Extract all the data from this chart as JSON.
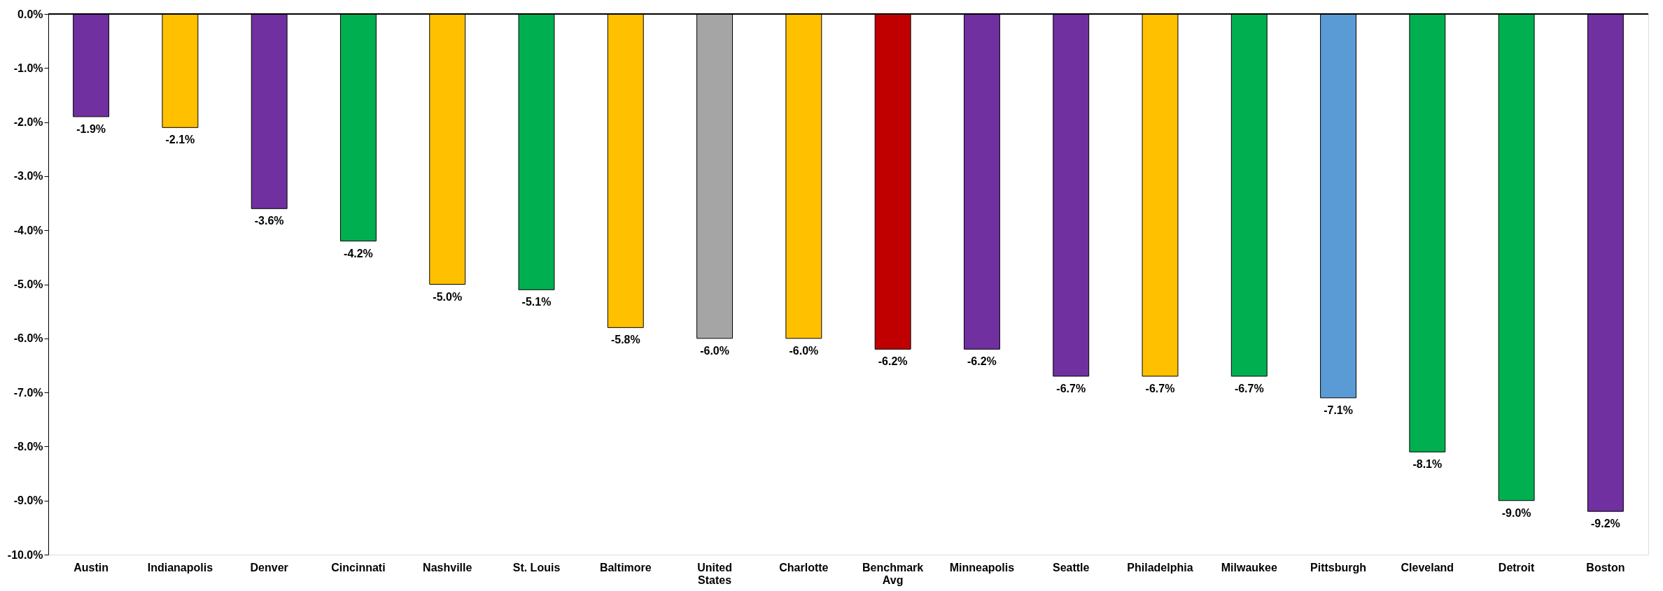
{
  "chart_data": {
    "type": "bar",
    "categories": [
      "Austin",
      "Indianapolis",
      "Denver",
      "Cincinnati",
      "Nashville",
      "St. Louis",
      "Baltimore",
      "United States",
      "Charlotte",
      "Benchmark Avg",
      "Minneapolis",
      "Seattle",
      "Philadelphia",
      "Milwaukee",
      "Pittsburgh",
      "Cleveland",
      "Detroit",
      "Boston"
    ],
    "values": [
      -1.9,
      -2.1,
      -3.6,
      -4.2,
      -5.0,
      -5.1,
      -5.8,
      -6.0,
      -6.0,
      -6.2,
      -6.2,
      -6.7,
      -6.7,
      -6.7,
      -7.1,
      -8.1,
      -9.0,
      -9.2
    ],
    "colors": [
      "#7030a0",
      "#ffc000",
      "#7030a0",
      "#00b050",
      "#ffc000",
      "#00b050",
      "#ffc000",
      "#a5a5a5",
      "#ffc000",
      "#c00000",
      "#7030a0",
      "#7030a0",
      "#ffc000",
      "#00b050",
      "#5b9bd5",
      "#00b050",
      "#00b050",
      "#7030a0"
    ],
    "value_labels": [
      "-1.9%",
      "-2.1%",
      "-3.6%",
      "-4.2%",
      "-5.0%",
      "-5.1%",
      "-5.8%",
      "-6.0%",
      "-6.0%",
      "-6.2%",
      "-6.2%",
      "-6.7%",
      "-6.7%",
      "-6.7%",
      "-7.1%",
      "-8.1%",
      "-9.0%",
      "-9.2%"
    ],
    "ylim": [
      -10,
      0
    ],
    "yticks": [
      {
        "value": 0,
        "label": "0.0%"
      },
      {
        "value": -1,
        "label": "-1.0%"
      },
      {
        "value": -2,
        "label": "-2.0%"
      },
      {
        "value": -3,
        "label": "-3.0%"
      },
      {
        "value": -4,
        "label": "-4.0%"
      },
      {
        "value": -5,
        "label": "-5.0%"
      },
      {
        "value": -6,
        "label": "-6.0%"
      },
      {
        "value": -7,
        "label": "-7.0%"
      },
      {
        "value": -8,
        "label": "-8.0%"
      },
      {
        "value": -9,
        "label": "-9.0%"
      },
      {
        "value": -10,
        "label": "-10.0%"
      }
    ],
    "grid": false
  }
}
